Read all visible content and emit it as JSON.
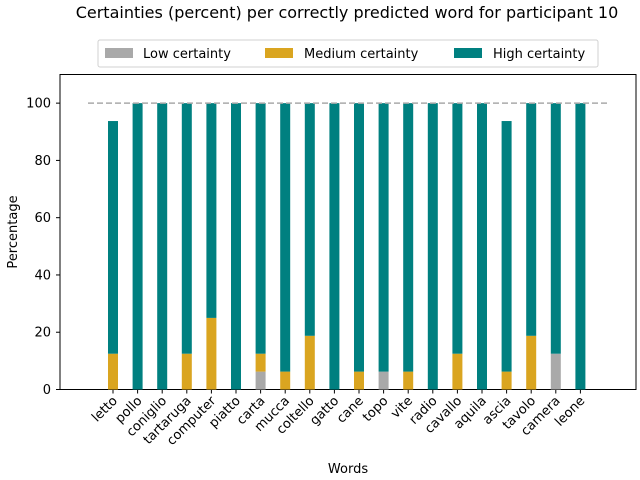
{
  "chart_data": {
    "type": "bar",
    "stacked": true,
    "title": "Certainties (percent) per correctly predicted word for participant 10",
    "xlabel": "Words",
    "ylabel": "Percentage",
    "ylim": [
      0,
      110
    ],
    "yticks": [
      0,
      20,
      40,
      60,
      80,
      100
    ],
    "reference_line": {
      "y": 100,
      "style": "dashed",
      "color": "#aaaaaa"
    },
    "legend_position": "top-center",
    "categories": [
      "letto",
      "pollo",
      "coniglio",
      "tartaruga",
      "computer",
      "piatto",
      "carta",
      "mucca",
      "coltello",
      "gatto",
      "cane",
      "topo",
      "vite",
      "radio",
      "cavallo",
      "aquila",
      "ascia",
      "tavolo",
      "camera",
      "leone"
    ],
    "series": [
      {
        "name": "Low certainty",
        "color": "#a9a9a9",
        "values": [
          0,
          0,
          0,
          0,
          0,
          0,
          6.25,
          0,
          0,
          0,
          0,
          6.25,
          0,
          0,
          0,
          0,
          0,
          0,
          12.5,
          0
        ]
      },
      {
        "name": "Medium certainty",
        "color": "#daa520",
        "values": [
          12.5,
          0,
          0,
          12.5,
          25,
          0,
          6.25,
          6.25,
          18.75,
          0,
          6.25,
          0,
          6.25,
          0,
          12.5,
          0,
          6.25,
          18.75,
          0,
          0
        ]
      },
      {
        "name": "High certainty",
        "color": "#008080",
        "values": [
          81.25,
          100,
          100,
          87.5,
          75,
          100,
          87.5,
          93.75,
          81.25,
          100,
          93.75,
          93.75,
          93.75,
          100,
          87.5,
          100,
          87.5,
          81.25,
          87.5,
          100
        ]
      }
    ]
  }
}
